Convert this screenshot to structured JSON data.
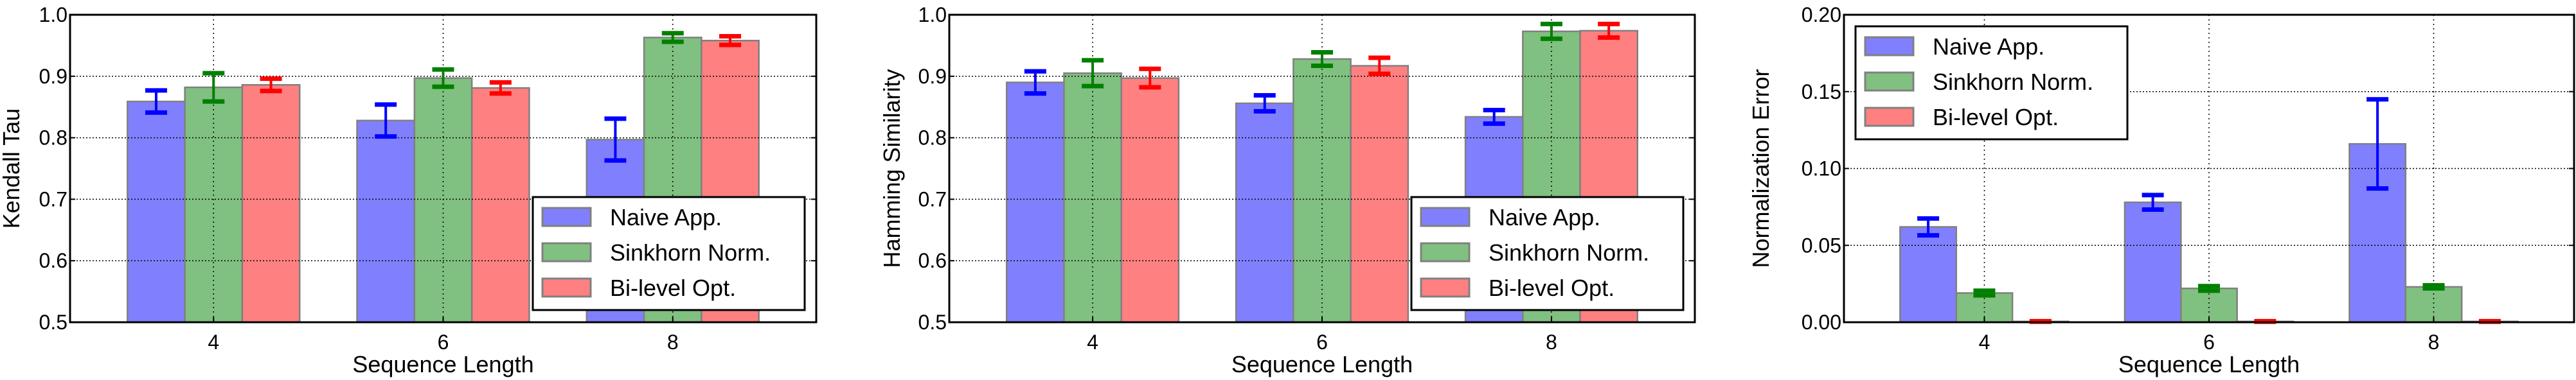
{
  "chart_data": [
    {
      "type": "bar",
      "xlabel": "Sequence Length",
      "ylabel": "Kendall Tau",
      "categories": [
        "4",
        "6",
        "8"
      ],
      "ylim": [
        0.5,
        1.0
      ],
      "yticks": [
        "0.5",
        "0.6",
        "0.7",
        "0.8",
        "0.9",
        "1.0"
      ],
      "grid": true,
      "legend_position": "lower-right",
      "series": [
        {
          "name": "Naive App.",
          "values": [
            0.859,
            0.828,
            0.797
          ],
          "errors": [
            0.018,
            0.026,
            0.034
          ]
        },
        {
          "name": "Sinkhorn Norm.",
          "values": [
            0.882,
            0.897,
            0.963
          ],
          "errors": [
            0.023,
            0.014,
            0.007
          ]
        },
        {
          "name": "Bi-level Opt.",
          "values": [
            0.886,
            0.881,
            0.958
          ],
          "errors": [
            0.01,
            0.009,
            0.007
          ]
        }
      ]
    },
    {
      "type": "bar",
      "xlabel": "Sequence Length",
      "ylabel": "Hamming Similarity",
      "categories": [
        "4",
        "6",
        "8"
      ],
      "ylim": [
        0.5,
        1.0
      ],
      "yticks": [
        "0.5",
        "0.6",
        "0.7",
        "0.8",
        "0.9",
        "1.0"
      ],
      "grid": true,
      "legend_position": "lower-right",
      "series": [
        {
          "name": "Naive App.",
          "values": [
            0.89,
            0.856,
            0.834
          ],
          "errors": [
            0.018,
            0.013,
            0.011
          ]
        },
        {
          "name": "Sinkhorn Norm.",
          "values": [
            0.905,
            0.928,
            0.973
          ],
          "errors": [
            0.021,
            0.011,
            0.012
          ]
        },
        {
          "name": "Bi-level Opt.",
          "values": [
            0.897,
            0.917,
            0.974
          ],
          "errors": [
            0.015,
            0.013,
            0.011
          ]
        }
      ]
    },
    {
      "type": "bar",
      "xlabel": "Sequence Length",
      "ylabel": "Normalization Error",
      "categories": [
        "4",
        "6",
        "8"
      ],
      "ylim": [
        0.0,
        0.2
      ],
      "yticks": [
        "0.00",
        "0.05",
        "0.10",
        "0.15",
        "0.20"
      ],
      "grid": true,
      "legend_position": "upper-left",
      "series": [
        {
          "name": "Naive App.",
          "values": [
            0.062,
            0.078,
            0.116
          ],
          "errors": [
            0.0055,
            0.0047,
            0.029
          ]
        },
        {
          "name": "Sinkhorn Norm.",
          "values": [
            0.019,
            0.022,
            0.023
          ],
          "errors": [
            0.0015,
            0.0015,
            0.001
          ]
        },
        {
          "name": "Bi-level Opt.",
          "values": [
            0.0005,
            0.0005,
            0.0005
          ],
          "errors": [
            0.0002,
            0.0002,
            0.0002
          ]
        }
      ]
    }
  ],
  "colors": {
    "fills": [
      "#8080ff",
      "#80c080",
      "#ff8080"
    ],
    "errors": [
      "#0000ff",
      "#008000",
      "#ff0000"
    ],
    "edge": "#808080"
  }
}
